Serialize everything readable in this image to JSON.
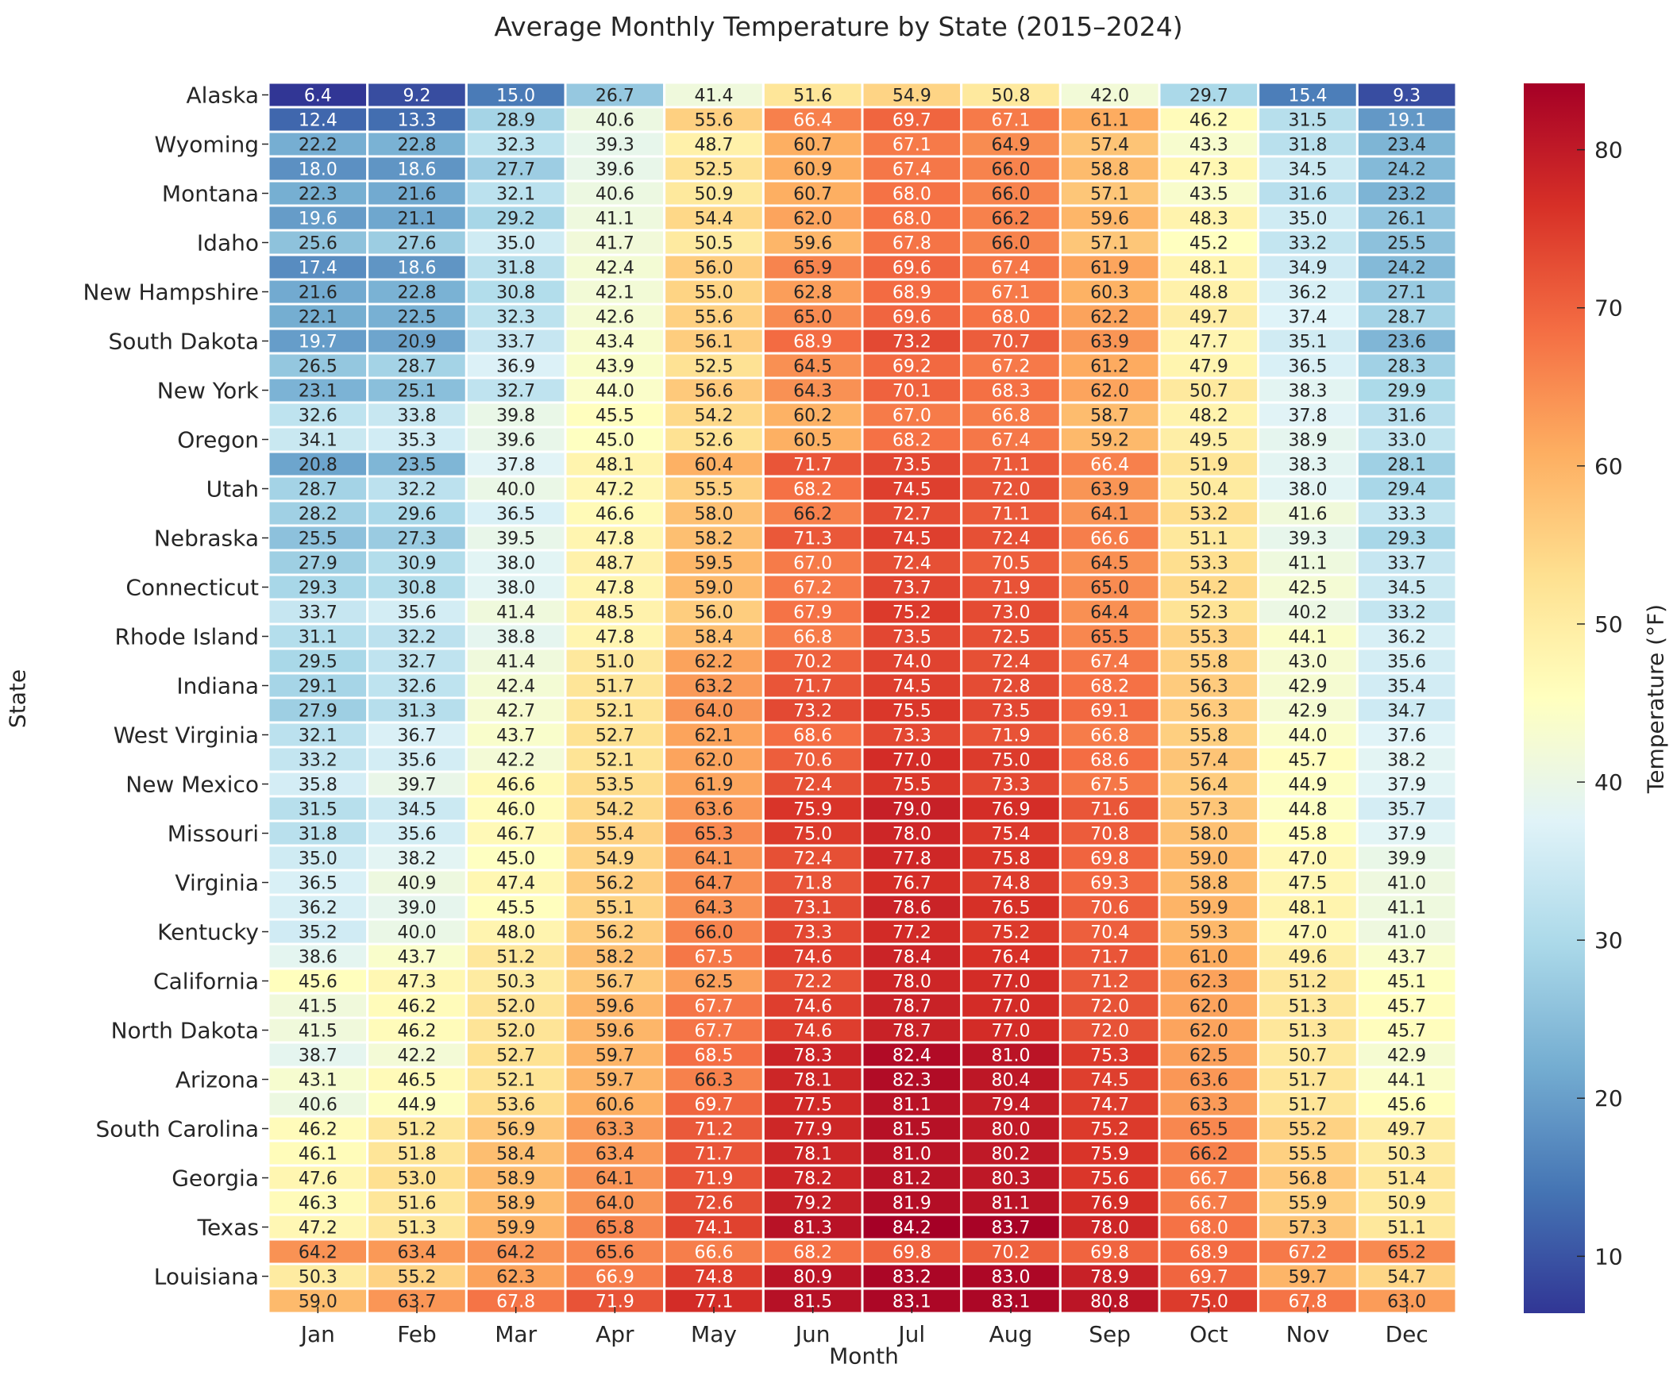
{
  "chart_data": {
    "type": "heatmap",
    "title": "Average Monthly Temperature by State (2015–2024)",
    "xlabel": "Month",
    "ylabel": "State",
    "colorbar": {
      "label": "Temperature (°F)",
      "range": [
        6.4,
        84.2
      ],
      "ticks": [
        10,
        20,
        30,
        40,
        50,
        60,
        70,
        80
      ],
      "colormap": "RdYlBu_r",
      "placement": "right"
    },
    "x": [
      "Jan",
      "Feb",
      "Mar",
      "Apr",
      "May",
      "Jun",
      "Jul",
      "Aug",
      "Sep",
      "Oct",
      "Nov",
      "Dec"
    ],
    "y_tick_labels": [
      "Alaska",
      "",
      "Wyoming",
      "",
      "Montana",
      "",
      "Idaho",
      "",
      "New Hampshire",
      "",
      "South Dakota",
      "",
      "New York",
      "",
      "Oregon",
      "",
      "Utah",
      "",
      "Nebraska",
      "",
      "Connecticut",
      "",
      "Rhode Island",
      "",
      "Indiana",
      "",
      "West Virginia",
      "",
      "New Mexico",
      "",
      "Missouri",
      "",
      "Virginia",
      "",
      "Kentucky",
      "",
      "California",
      "",
      "North Dakota",
      "",
      "Arizona",
      "",
      "South Carolina",
      "",
      "Georgia",
      "",
      "Texas",
      "",
      "Louisiana",
      ""
    ],
    "values": [
      [
        6.4,
        9.2,
        15.0,
        26.7,
        41.4,
        51.6,
        54.9,
        50.8,
        42.0,
        29.7,
        15.4,
        9.3
      ],
      [
        12.4,
        13.3,
        28.9,
        40.6,
        55.6,
        66.4,
        69.7,
        67.1,
        61.1,
        46.2,
        31.5,
        19.1
      ],
      [
        22.2,
        22.8,
        32.3,
        39.3,
        48.7,
        60.7,
        67.1,
        64.9,
        57.4,
        43.3,
        31.8,
        23.4
      ],
      [
        18.0,
        18.6,
        27.7,
        39.6,
        52.5,
        60.9,
        67.4,
        66.0,
        58.8,
        47.3,
        34.5,
        24.2
      ],
      [
        22.3,
        21.6,
        32.1,
        40.6,
        50.9,
        60.7,
        68.0,
        66.0,
        57.1,
        43.5,
        31.6,
        23.2
      ],
      [
        19.6,
        21.1,
        29.2,
        41.1,
        54.4,
        62.0,
        68.0,
        66.2,
        59.6,
        48.3,
        35.0,
        26.1
      ],
      [
        25.6,
        27.6,
        35.0,
        41.7,
        50.5,
        59.6,
        67.8,
        66.0,
        57.1,
        45.2,
        33.2,
        25.5
      ],
      [
        17.4,
        18.6,
        31.8,
        42.4,
        56.0,
        65.9,
        69.6,
        67.4,
        61.9,
        48.1,
        34.9,
        24.2
      ],
      [
        21.6,
        22.8,
        30.8,
        42.1,
        55.0,
        62.8,
        68.9,
        67.1,
        60.3,
        48.8,
        36.2,
        27.1
      ],
      [
        22.1,
        22.5,
        32.3,
        42.6,
        55.6,
        65.0,
        69.6,
        68.0,
        62.2,
        49.7,
        37.4,
        28.7
      ],
      [
        19.7,
        20.9,
        33.7,
        43.4,
        56.1,
        68.9,
        73.2,
        70.7,
        63.9,
        47.7,
        35.1,
        23.6
      ],
      [
        26.5,
        28.7,
        36.9,
        43.9,
        52.5,
        64.5,
        69.2,
        67.2,
        61.2,
        47.9,
        36.5,
        28.3
      ],
      [
        23.1,
        25.1,
        32.7,
        44.0,
        56.6,
        64.3,
        70.1,
        68.3,
        62.0,
        50.7,
        38.3,
        29.9
      ],
      [
        32.6,
        33.8,
        39.8,
        45.5,
        54.2,
        60.2,
        67.0,
        66.8,
        58.7,
        48.2,
        37.8,
        31.6
      ],
      [
        34.1,
        35.3,
        39.6,
        45.0,
        52.6,
        60.5,
        68.2,
        67.4,
        59.2,
        49.5,
        38.9,
        33.0
      ],
      [
        20.8,
        23.5,
        37.8,
        48.1,
        60.4,
        71.7,
        73.5,
        71.1,
        66.4,
        51.9,
        38.3,
        28.1
      ],
      [
        28.7,
        32.2,
        40.0,
        47.2,
        55.5,
        68.2,
        74.5,
        72.0,
        63.9,
        50.4,
        38.0,
        29.4
      ],
      [
        28.2,
        29.6,
        36.5,
        46.6,
        58.0,
        66.2,
        72.7,
        71.1,
        64.1,
        53.2,
        41.6,
        33.3
      ],
      [
        25.5,
        27.3,
        39.5,
        47.8,
        58.2,
        71.3,
        74.5,
        72.4,
        66.6,
        51.1,
        39.3,
        29.3
      ],
      [
        27.9,
        30.9,
        38.0,
        48.7,
        59.5,
        67.0,
        72.4,
        70.5,
        64.5,
        53.3,
        41.1,
        33.7
      ],
      [
        29.3,
        30.8,
        38.0,
        47.8,
        59.0,
        67.2,
        73.7,
        71.9,
        65.0,
        54.2,
        42.5,
        34.5
      ],
      [
        33.7,
        35.6,
        41.4,
        48.5,
        56.0,
        67.9,
        75.2,
        73.0,
        64.4,
        52.3,
        40.2,
        33.2
      ],
      [
        31.1,
        32.2,
        38.8,
        47.8,
        58.4,
        66.8,
        73.5,
        72.5,
        65.5,
        55.3,
        44.1,
        36.2
      ],
      [
        29.5,
        32.7,
        41.4,
        51.0,
        62.2,
        70.2,
        74.0,
        72.4,
        67.4,
        55.8,
        43.0,
        35.6
      ],
      [
        29.1,
        32.6,
        42.4,
        51.7,
        63.2,
        71.7,
        74.5,
        72.8,
        68.2,
        56.3,
        42.9,
        35.4
      ],
      [
        27.9,
        31.3,
        42.7,
        52.1,
        64.0,
        73.2,
        75.5,
        73.5,
        69.1,
        56.3,
        42.9,
        34.7
      ],
      [
        32.1,
        36.7,
        43.7,
        52.7,
        62.1,
        68.6,
        73.3,
        71.9,
        66.8,
        55.8,
        44.0,
        37.6
      ],
      [
        33.2,
        35.6,
        42.2,
        52.1,
        62.0,
        70.6,
        77.0,
        75.0,
        68.6,
        57.4,
        45.7,
        38.2
      ],
      [
        35.8,
        39.7,
        46.6,
        53.5,
        61.9,
        72.4,
        75.5,
        73.3,
        67.5,
        56.4,
        44.9,
        37.9
      ],
      [
        31.5,
        34.5,
        46.0,
        54.2,
        63.6,
        75.9,
        79.0,
        76.9,
        71.6,
        57.3,
        44.8,
        35.7
      ],
      [
        31.8,
        35.6,
        46.7,
        55.4,
        65.3,
        75.0,
        78.0,
        75.4,
        70.8,
        58.0,
        45.8,
        37.9
      ],
      [
        35.0,
        38.2,
        45.0,
        54.9,
        64.1,
        72.4,
        77.8,
        75.8,
        69.8,
        59.0,
        47.0,
        39.9
      ],
      [
        36.5,
        40.9,
        47.4,
        56.2,
        64.7,
        71.8,
        76.7,
        74.8,
        69.3,
        58.8,
        47.5,
        41.0
      ],
      [
        36.2,
        39.0,
        45.5,
        55.1,
        64.3,
        73.1,
        78.6,
        76.5,
        70.6,
        59.9,
        48.1,
        41.1
      ],
      [
        35.2,
        40.0,
        48.0,
        56.2,
        66.0,
        73.3,
        77.2,
        75.2,
        70.4,
        59.3,
        47.0,
        41.0
      ],
      [
        38.6,
        43.7,
        51.2,
        58.2,
        67.5,
        74.6,
        78.4,
        76.4,
        71.7,
        61.0,
        49.6,
        43.7
      ],
      [
        45.6,
        47.3,
        50.3,
        56.7,
        62.5,
        72.2,
        78.0,
        77.0,
        71.2,
        62.3,
        51.2,
        45.1
      ],
      [
        41.5,
        46.2,
        52.0,
        59.6,
        67.7,
        74.6,
        78.7,
        77.0,
        72.0,
        62.0,
        51.3,
        45.7
      ],
      [
        41.5,
        46.2,
        52.0,
        59.6,
        67.7,
        74.6,
        78.7,
        77.0,
        72.0,
        62.0,
        51.3,
        45.7
      ],
      [
        38.7,
        42.2,
        52.7,
        59.7,
        68.5,
        78.3,
        82.4,
        81.0,
        75.3,
        62.5,
        50.7,
        42.9
      ],
      [
        43.1,
        46.5,
        52.1,
        59.7,
        66.3,
        78.1,
        82.3,
        80.4,
        74.5,
        63.6,
        51.7,
        44.1
      ],
      [
        40.6,
        44.9,
        53.6,
        60.6,
        69.7,
        77.5,
        81.1,
        79.4,
        74.7,
        63.3,
        51.7,
        45.6
      ],
      [
        46.2,
        51.2,
        56.9,
        63.3,
        71.2,
        77.9,
        81.5,
        80.0,
        75.2,
        65.5,
        55.2,
        49.7
      ],
      [
        46.1,
        51.8,
        58.4,
        63.4,
        71.7,
        78.1,
        81.0,
        80.2,
        75.9,
        66.2,
        55.5,
        50.3
      ],
      [
        47.6,
        53.0,
        58.9,
        64.1,
        71.9,
        78.2,
        81.2,
        80.3,
        75.6,
        66.7,
        56.8,
        51.4
      ],
      [
        46.3,
        51.6,
        58.9,
        64.0,
        72.6,
        79.2,
        81.9,
        81.1,
        76.9,
        66.7,
        55.9,
        50.9
      ],
      [
        47.2,
        51.3,
        59.9,
        65.8,
        74.1,
        81.3,
        84.2,
        83.7,
        78.0,
        68.0,
        57.3,
        51.1
      ],
      [
        64.2,
        63.4,
        64.2,
        65.6,
        66.6,
        68.2,
        69.8,
        70.2,
        69.8,
        68.9,
        67.2,
        65.2
      ],
      [
        50.3,
        55.2,
        62.3,
        66.9,
        74.8,
        80.9,
        83.2,
        83.0,
        78.9,
        69.7,
        59.7,
        54.7
      ],
      [
        59.0,
        63.7,
        67.8,
        71.9,
        77.1,
        81.5,
        83.1,
        83.1,
        80.8,
        75.0,
        67.8,
        63.0
      ]
    ],
    "annotations": "values shown in each cell with 1 decimal",
    "grid": false,
    "cell_separator_color": "#ffffff"
  }
}
